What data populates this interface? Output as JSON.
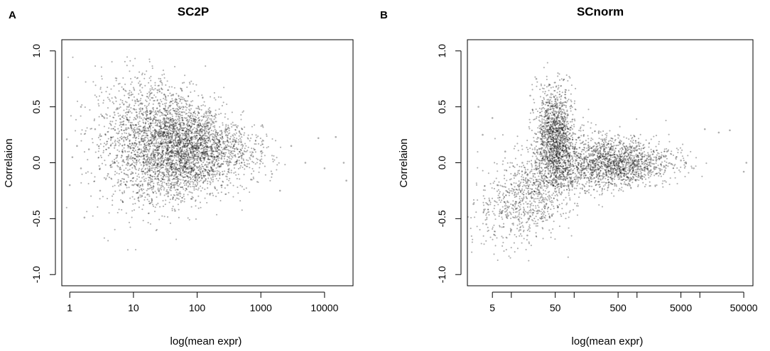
{
  "chart_data": [
    {
      "panel": "A",
      "type": "scatter",
      "title": "SC2P",
      "xlabel": "log(mean expr)",
      "ylabel": "Correlaion",
      "x_scale": "log",
      "xlim": [
        0.75,
        28000
      ],
      "ylim": [
        -1.1,
        1.1
      ],
      "xticks": [
        1,
        10,
        100,
        1000,
        10000
      ],
      "xtick_labels": [
        "1",
        "10",
        "100",
        "1000",
        "10000"
      ],
      "yticks": [
        -1.0,
        -0.5,
        0.0,
        0.5,
        1.0
      ],
      "ytick_labels": [
        "-1.0",
        "-0.5",
        "0.0",
        "0.5",
        "1.0"
      ],
      "grid": false,
      "points": [
        [
          0.9,
          0.21
        ],
        [
          1.0,
          -0.2
        ],
        [
          1.1,
          0.05
        ],
        [
          1.3,
          0.15
        ],
        [
          1.5,
          0.5
        ],
        [
          1.5,
          -0.05
        ],
        [
          1.7,
          -0.49
        ],
        [
          2.0,
          0.12
        ],
        [
          2.5,
          0.3
        ],
        [
          3.0,
          -0.25
        ],
        [
          3.5,
          0.4
        ],
        [
          4,
          -0.1
        ],
        [
          5,
          0.45
        ],
        [
          5,
          0.0
        ],
        [
          6,
          0.2
        ],
        [
          8,
          0.5
        ],
        [
          10,
          0.3
        ],
        [
          10,
          -0.2
        ],
        [
          12,
          0.55
        ],
        [
          15,
          0.1
        ],
        [
          20,
          0.58
        ],
        [
          20,
          0.25
        ],
        [
          25,
          -0.1
        ],
        [
          30,
          0.4
        ],
        [
          35,
          -0.3
        ],
        [
          40,
          0.15
        ],
        [
          45,
          -0.43
        ],
        [
          50,
          0.2
        ],
        [
          60,
          0.5
        ],
        [
          70,
          0.1
        ],
        [
          80,
          -0.05
        ],
        [
          100,
          0.15
        ],
        [
          150,
          0.3
        ],
        [
          200,
          0.05
        ],
        [
          300,
          -0.2
        ],
        [
          400,
          0.2
        ],
        [
          500,
          0.0
        ],
        [
          700,
          -0.15
        ],
        [
          1000,
          0.1
        ],
        [
          1500,
          -0.1
        ],
        [
          2000,
          -0.25
        ],
        [
          3000,
          0.15
        ],
        [
          5000,
          0.0
        ],
        [
          8000,
          0.22
        ],
        [
          10000,
          -0.05
        ],
        [
          15000,
          0.23
        ],
        [
          20000,
          0.0
        ],
        [
          22000,
          -0.16
        ]
      ]
    },
    {
      "panel": "B",
      "type": "scatter",
      "title": "SCnorm",
      "xlabel": "log(mean expr)",
      "ylabel": "Correlaion",
      "x_scale": "log",
      "xlim": [
        2,
        70000
      ],
      "ylim": [
        -1.1,
        1.1
      ],
      "xticks": [
        5,
        10,
        50,
        100,
        500,
        1000,
        5000,
        10000,
        50000
      ],
      "xtick_labels": [
        "5",
        "",
        "50",
        "",
        "500",
        "",
        "5000",
        "",
        "50000"
      ],
      "yticks": [
        -1.0,
        -0.5,
        0.0,
        0.5,
        1.0
      ],
      "ytick_labels": [
        "-1.0",
        "-0.5",
        "0.0",
        "0.5",
        "1.0"
      ],
      "grid": false,
      "points": [
        [
          2.5,
          -0.37
        ],
        [
          3.0,
          0.5
        ],
        [
          3.5,
          0.25
        ],
        [
          4,
          -0.55
        ],
        [
          5,
          0.4
        ],
        [
          6,
          -0.2
        ],
        [
          7,
          -0.45
        ],
        [
          8,
          0.1
        ],
        [
          10,
          -0.6
        ],
        [
          12,
          -0.3
        ],
        [
          15,
          0.0
        ],
        [
          18,
          -0.65
        ],
        [
          20,
          0.6
        ],
        [
          25,
          0.75
        ],
        [
          30,
          -0.5
        ],
        [
          35,
          0.3
        ],
        [
          40,
          0.7
        ],
        [
          50,
          0.55
        ],
        [
          55,
          -0.4
        ],
        [
          60,
          0.2
        ],
        [
          70,
          0.45
        ],
        [
          80,
          -0.2
        ],
        [
          100,
          0.1
        ],
        [
          150,
          0.05
        ],
        [
          200,
          -0.05
        ],
        [
          300,
          0.12
        ],
        [
          400,
          -0.15
        ],
        [
          500,
          0.25
        ],
        [
          800,
          0.0
        ],
        [
          1000,
          0.15
        ],
        [
          2000,
          -0.1
        ],
        [
          3000,
          0.1
        ],
        [
          5000,
          0.02
        ],
        [
          8000,
          -0.05
        ],
        [
          12000,
          0.3
        ],
        [
          20000,
          0.27
        ],
        [
          30000,
          0.29
        ],
        [
          50000,
          -0.08
        ],
        [
          55000,
          0.0
        ]
      ]
    }
  ]
}
